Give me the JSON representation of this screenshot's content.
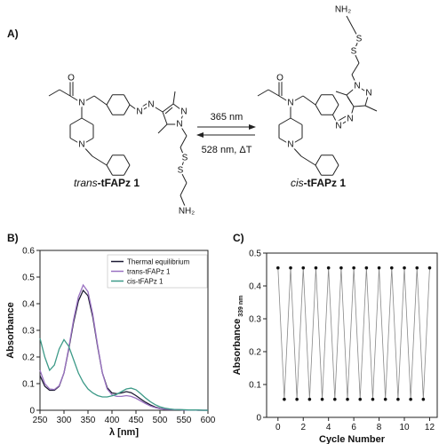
{
  "panel_label": "A)",
  "scheme": {
    "forward": "365 nm",
    "reverse": "528 nm, ΔT",
    "trans": {
      "prefix": "trans",
      "suffix": "-tFAPz 1",
      "atoms": [
        "O",
        "N",
        "N",
        "N",
        "N",
        "N",
        "N",
        "S",
        "S",
        "NH₂"
      ]
    },
    "cis": {
      "prefix": "cis",
      "suffix": "-tFAPz 1",
      "atoms": [
        "O",
        "N",
        "N",
        "N",
        "N",
        "N",
        "N",
        "S",
        "S",
        "NH₂"
      ]
    }
  },
  "chart_data": [
    {
      "type": "line",
      "label": "B)",
      "xlabel": "λ [nm]",
      "ylabel": "Absorbance",
      "x": [
        250,
        260,
        270,
        280,
        290,
        300,
        310,
        320,
        330,
        340,
        350,
        360,
        370,
        380,
        390,
        400,
        410,
        420,
        430,
        440,
        450,
        460,
        470,
        480,
        490,
        500,
        510,
        520,
        530,
        540,
        550,
        560,
        570,
        580,
        590,
        600
      ],
      "series": [
        {
          "name": "Thermal equilibrium",
          "color": "#1c1a33",
          "values": [
            0.13,
            0.09,
            0.075,
            0.075,
            0.09,
            0.14,
            0.23,
            0.33,
            0.41,
            0.45,
            0.43,
            0.35,
            0.24,
            0.14,
            0.085,
            0.065,
            0.062,
            0.065,
            0.07,
            0.066,
            0.055,
            0.042,
            0.03,
            0.02,
            0.012,
            0.007,
            0.004,
            0.003,
            0.002,
            0.002,
            0.001,
            0.001,
            0.001,
            0,
            0,
            0
          ]
        },
        {
          "name": "trans-tFAPz 1",
          "color": "#9a72c2",
          "values": [
            0.15,
            0.1,
            0.08,
            0.078,
            0.092,
            0.14,
            0.235,
            0.34,
            0.425,
            0.47,
            0.445,
            0.36,
            0.245,
            0.14,
            0.08,
            0.058,
            0.052,
            0.052,
            0.055,
            0.052,
            0.045,
            0.035,
            0.025,
            0.016,
            0.01,
            0.006,
            0.004,
            0.003,
            0.002,
            0.002,
            0.001,
            0.001,
            0.001,
            0,
            0,
            0
          ]
        },
        {
          "name": "cis-tFAPz 1",
          "color": "#3d9a88",
          "values": [
            0.27,
            0.2,
            0.15,
            0.17,
            0.23,
            0.265,
            0.24,
            0.19,
            0.14,
            0.105,
            0.08,
            0.065,
            0.055,
            0.05,
            0.05,
            0.054,
            0.06,
            0.07,
            0.08,
            0.083,
            0.077,
            0.062,
            0.046,
            0.032,
            0.021,
            0.013,
            0.008,
            0.005,
            0.003,
            0.002,
            0.002,
            0.001,
            0.001,
            0.001,
            0,
            0
          ]
        }
      ],
      "xlim": [
        250,
        600
      ],
      "xticks": [
        250,
        300,
        350,
        400,
        450,
        500,
        550,
        600
      ],
      "ylim": [
        0,
        0.6
      ],
      "yticks": [
        0,
        0.1,
        0.2,
        0.3,
        0.4,
        0.5,
        0.6
      ],
      "legend": "upper right"
    },
    {
      "type": "line",
      "markers": true,
      "label": "C)",
      "xlabel": "Cycle Number",
      "ylabel": "Absorbance",
      "ylabel_sub": "339 nm",
      "x": [
        0,
        0.5,
        1,
        1.5,
        2,
        2.5,
        3,
        3.5,
        4,
        4.5,
        5,
        5.5,
        6,
        6.5,
        7,
        7.5,
        8,
        8.5,
        9,
        9.5,
        10,
        10.5,
        11,
        11.5,
        12
      ],
      "series": [
        {
          "color": "#111111",
          "line_color": "#888888",
          "values": [
            0.455,
            0.055,
            0.455,
            0.055,
            0.455,
            0.055,
            0.455,
            0.055,
            0.455,
            0.055,
            0.455,
            0.055,
            0.455,
            0.055,
            0.455,
            0.055,
            0.455,
            0.055,
            0.455,
            0.055,
            0.455,
            0.055,
            0.455,
            0.055,
            0.455
          ]
        }
      ],
      "xlim": [
        -0.9,
        12.6
      ],
      "xticks": [
        0,
        2,
        4,
        6,
        8,
        10,
        12
      ],
      "ylim": [
        0,
        0.5
      ],
      "yticks": [
        0,
        0.1,
        0.2,
        0.3,
        0.4,
        0.5
      ]
    }
  ]
}
